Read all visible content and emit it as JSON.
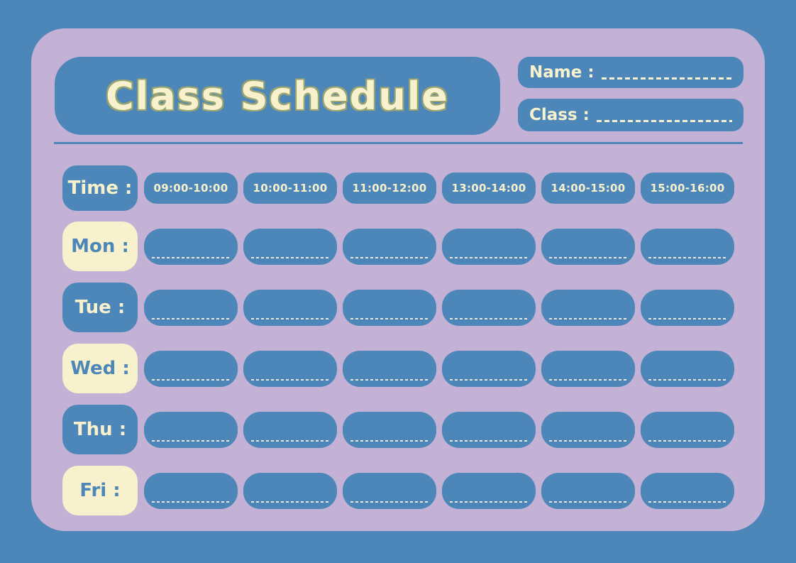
{
  "page": {
    "title": "Class Schedule"
  },
  "header": {
    "name_label": "Name :",
    "class_label": "Class :"
  },
  "schedule": {
    "time_label": "Time :",
    "time_slots": [
      "09:00-10:00",
      "10:00-11:00",
      "11:00-12:00",
      "13:00-14:00",
      "14:00-15:00",
      "15:00-16:00"
    ],
    "days": [
      {
        "label": "Mon :",
        "style": "cream"
      },
      {
        "label": "Tue :",
        "style": "blue"
      },
      {
        "label": "Wed :",
        "style": "cream"
      },
      {
        "label": "Thu :",
        "style": "blue"
      },
      {
        "label": "Fri :",
        "style": "cream"
      }
    ]
  },
  "colors": {
    "background_blue": "#4d86b8",
    "panel_lavender": "#c4b1d6",
    "block_blue": "#4d86b8",
    "cream": "#f7f2cd",
    "field_dash": "#f7f2cd",
    "write_line": "#e9e7da",
    "title_outline": "#9aa471"
  }
}
